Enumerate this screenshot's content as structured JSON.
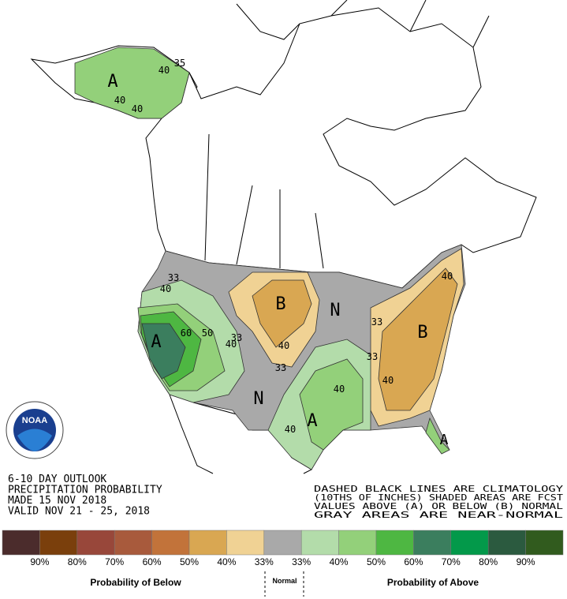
{
  "header": {
    "lines": [
      "6-10 DAY OUTLOOK",
      "PRECIPITATION PROBABILITY",
      "MADE  15 NOV 2018",
      "VALID  NOV 21 - 25, 2018"
    ]
  },
  "notes": {
    "lines": [
      "DASHED BLACK LINES ARE CLIMATOLOGY",
      "(10THS OF INCHES) SHADED AREAS ARE FCST",
      "VALUES ABOVE (A) OR BELOW (B) NORMAL",
      "GRAY AREAS ARE NEAR-NORMAL"
    ]
  },
  "logo": {
    "label": "NOAA"
  },
  "map": {
    "labels": [
      "A",
      "40",
      "35",
      "40",
      "40",
      "33",
      "40",
      "A",
      "60",
      "50",
      "40",
      "33",
      "B",
      "40",
      "33",
      "N",
      "N",
      "33",
      "40",
      "A",
      "40",
      "40",
      "B",
      "40",
      "33",
      "A"
    ]
  },
  "legend": {
    "colors": [
      "#4b2c2c",
      "#7a3f0c",
      "#98473a",
      "#a85a3c",
      "#c2733a",
      "#d9a752",
      "#f0d294",
      "#a9a9a9",
      "#b3dcaa",
      "#93d07a",
      "#4eb742",
      "#3b7e5e",
      "#03994a",
      "#2b5a3f",
      "#315b1e"
    ],
    "ticks": [
      "90%",
      "80%",
      "70%",
      "60%",
      "50%",
      "40%",
      "33%",
      "33%",
      "40%",
      "50%",
      "60%",
      "70%",
      "80%",
      "90%"
    ],
    "below": "Probability of Below",
    "normal": "Normal",
    "above": "Probability of Above"
  }
}
